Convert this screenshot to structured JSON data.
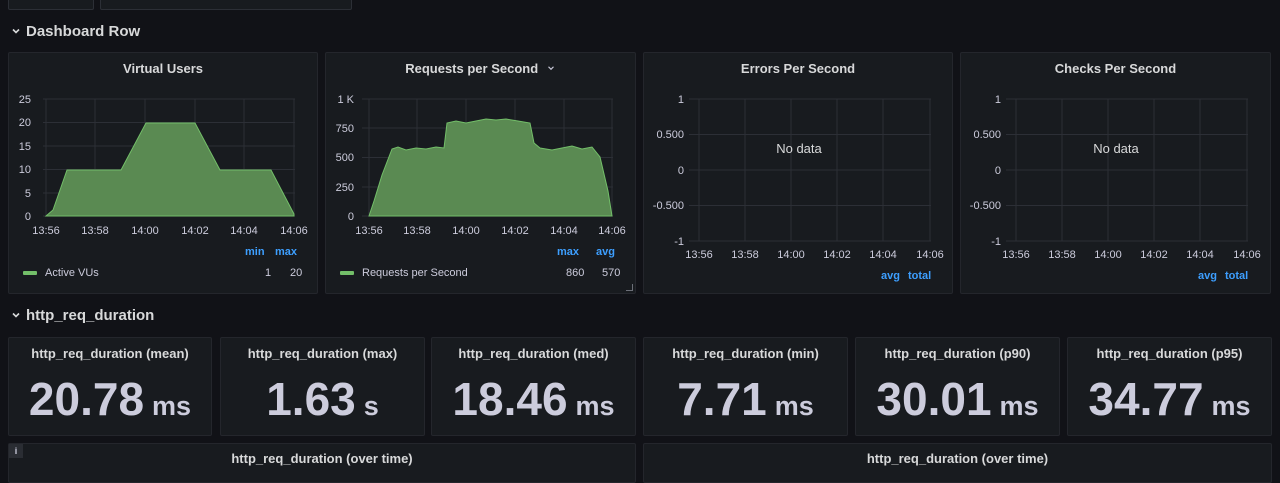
{
  "row1": {
    "title": "Dashboard Row"
  },
  "row2": {
    "title": "http_req_duration"
  },
  "colors": {
    "series": "#73bf69",
    "legend_head": "#3d9fff",
    "bg": "#111217",
    "panel_bg": "#181b1f"
  },
  "panels": {
    "vus": {
      "title": "Virtual Users",
      "y_ticks": [
        "25",
        "20",
        "15",
        "10",
        "5",
        "0"
      ],
      "x_ticks": [
        "13:56",
        "13:58",
        "14:00",
        "14:02",
        "14:04",
        "14:06"
      ],
      "legend_headers": [
        "min",
        "max"
      ],
      "legend": {
        "name": "Active VUs",
        "values": [
          "1",
          "20"
        ]
      }
    },
    "rps": {
      "title": "Requests per Second",
      "y_ticks": [
        "1 K",
        "750",
        "500",
        "250",
        "0"
      ],
      "x_ticks": [
        "13:56",
        "13:58",
        "14:00",
        "14:02",
        "14:04",
        "14:06"
      ],
      "legend_headers": [
        "max",
        "avg"
      ],
      "legend": {
        "name": "Requests per Second",
        "values": [
          "860",
          "570"
        ]
      }
    },
    "eps": {
      "title": "Errors Per Second",
      "no_data": "No data",
      "y_ticks": [
        "1",
        "0.500",
        "0",
        "-0.500",
        "-1"
      ],
      "x_ticks": [
        "13:56",
        "13:58",
        "14:00",
        "14:02",
        "14:04",
        "14:06"
      ],
      "legend_headers": [
        "avg",
        "total"
      ]
    },
    "cps": {
      "title": "Checks Per Second",
      "no_data": "No data",
      "y_ticks": [
        "1",
        "0.500",
        "0",
        "-0.500",
        "-1"
      ],
      "x_ticks": [
        "13:56",
        "13:58",
        "14:00",
        "14:02",
        "14:04",
        "14:06"
      ],
      "legend_headers": [
        "avg",
        "total"
      ]
    }
  },
  "stats": [
    {
      "title": "http_req_duration (mean)",
      "value": "20.78",
      "unit": "ms"
    },
    {
      "title": "http_req_duration (max)",
      "value": "1.63",
      "unit": "s"
    },
    {
      "title": "http_req_duration (med)",
      "value": "18.46",
      "unit": "ms"
    },
    {
      "title": "http_req_duration (min)",
      "value": "7.71",
      "unit": "ms"
    },
    {
      "title": "http_req_duration (p90)",
      "value": "30.01",
      "unit": "ms"
    },
    {
      "title": "http_req_duration (p95)",
      "value": "34.77",
      "unit": "ms"
    }
  ],
  "bottom_panels": [
    {
      "title": "http_req_duration (over time)",
      "info": "i"
    },
    {
      "title": "http_req_duration (over time)"
    }
  ],
  "chart_data": [
    {
      "type": "area",
      "title": "Virtual Users",
      "x": [
        "13:56",
        "13:58",
        "14:00",
        "14:01.5",
        "14:02",
        "14:04",
        "14:05",
        "14:06"
      ],
      "series": [
        {
          "name": "Active VUs",
          "values": [
            1,
            10,
            10,
            20,
            20,
            10,
            10,
            1
          ]
        }
      ],
      "ylim": [
        0,
        25
      ]
    },
    {
      "type": "area",
      "title": "Requests per Second",
      "x": [
        "13:56",
        "13:57",
        "13:58",
        "13:59",
        "14:00",
        "14:01",
        "14:02",
        "14:03",
        "14:04",
        "14:05",
        "14:06"
      ],
      "series": [
        {
          "name": "Requests per Second",
          "values": [
            0,
            450,
            500,
            500,
            750,
            800,
            750,
            500,
            550,
            480,
            0
          ]
        }
      ],
      "ylim": [
        0,
        1000
      ]
    },
    {
      "type": "line",
      "title": "Errors Per Second",
      "series": [],
      "ylim": [
        -1,
        1
      ]
    },
    {
      "type": "line",
      "title": "Checks Per Second",
      "series": [],
      "ylim": [
        -1,
        1
      ]
    }
  ]
}
